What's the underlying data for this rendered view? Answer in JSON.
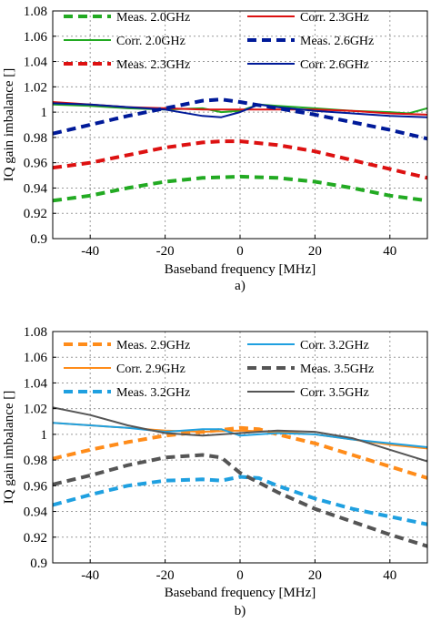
{
  "chart_data": [
    {
      "type": "line",
      "panel_label": "a)",
      "xlabel": "Baseband frequency [MHz]",
      "ylabel": "IQ gain imbalance []",
      "xlim": [
        -50,
        50
      ],
      "ylim": [
        0.9,
        1.08
      ],
      "xticks": [
        -40,
        -20,
        0,
        20,
        40
      ],
      "yticks": [
        "0.9",
        "0.92",
        "0.94",
        "0.96",
        "0.98",
        "1",
        "1.02",
        "1.04",
        "1.06",
        "1.08"
      ],
      "grid": true,
      "legend_position": "top, inside axes, two columns",
      "series": [
        {
          "name": "Meas. 2.0GHz",
          "color": "#22aa22",
          "style": "dashed",
          "x": [
            -50,
            -40,
            -30,
            -20,
            -10,
            0,
            10,
            20,
            30,
            40,
            50
          ],
          "y": [
            0.93,
            0.934,
            0.94,
            0.945,
            0.948,
            0.949,
            0.948,
            0.945,
            0.94,
            0.934,
            0.93
          ]
        },
        {
          "name": "Corr. 2.0GHz",
          "color": "#22aa22",
          "style": "solid",
          "x": [
            -50,
            -40,
            -30,
            -20,
            -10,
            -5,
            0,
            5,
            10,
            20,
            30,
            40,
            45,
            50
          ],
          "y": [
            1.006,
            1.005,
            1.003,
            1.002,
            1.003,
            1.0,
            1.001,
            1.006,
            1.005,
            1.003,
            1.001,
            1.0,
            0.999,
            1.003
          ]
        },
        {
          "name": "Meas. 2.3GHz",
          "color": "#dd1111",
          "style": "dashed",
          "x": [
            -50,
            -40,
            -30,
            -20,
            -10,
            -5,
            0,
            10,
            20,
            30,
            40,
            50
          ],
          "y": [
            0.956,
            0.96,
            0.966,
            0.972,
            0.976,
            0.977,
            0.977,
            0.974,
            0.969,
            0.962,
            0.955,
            0.948
          ]
        },
        {
          "name": "Corr. 2.3GHz",
          "color": "#dd1111",
          "style": "solid",
          "x": [
            -50,
            -40,
            -30,
            -20,
            -10,
            0,
            10,
            20,
            30,
            40,
            50
          ],
          "y": [
            1.008,
            1.006,
            1.004,
            1.003,
            1.002,
            1.002,
            1.002,
            1.002,
            1.001,
            0.999,
            0.998
          ]
        },
        {
          "name": "Meas. 2.6GHz",
          "color": "#001a99",
          "style": "dashed",
          "x": [
            -50,
            -40,
            -30,
            -20,
            -10,
            -5,
            0,
            10,
            20,
            30,
            40,
            50
          ],
          "y": [
            0.983,
            0.99,
            0.997,
            1.003,
            1.009,
            1.01,
            1.008,
            1.003,
            0.998,
            0.992,
            0.986,
            0.979
          ]
        },
        {
          "name": "Corr. 2.6GHz",
          "color": "#001a99",
          "style": "solid",
          "x": [
            -50,
            -40,
            -30,
            -20,
            -10,
            -5,
            0,
            5,
            10,
            20,
            30,
            40,
            50
          ],
          "y": [
            1.007,
            1.006,
            1.004,
            1.002,
            0.997,
            0.996,
            1.0,
            1.006,
            1.004,
            1.001,
            0.999,
            0.997,
            0.996
          ]
        }
      ]
    },
    {
      "type": "line",
      "panel_label": "b)",
      "xlabel": "Baseband frequency [MHz]",
      "ylabel": "IQ gain imbalance []",
      "xlim": [
        -50,
        50
      ],
      "ylim": [
        0.9,
        1.08
      ],
      "xticks": [
        -40,
        -20,
        0,
        20,
        40
      ],
      "yticks": [
        "0.9",
        "0.92",
        "0.94",
        "0.96",
        "0.98",
        "1",
        "1.02",
        "1.04",
        "1.06",
        "1.08"
      ],
      "grid": true,
      "legend_position": "top, inside axes, two columns",
      "series": [
        {
          "name": "Meas. 2.9GHz",
          "color": "#ff8c1a",
          "style": "dashed",
          "x": [
            -50,
            -40,
            -30,
            -20,
            -10,
            0,
            5,
            10,
            20,
            30,
            40,
            50
          ],
          "y": [
            0.981,
            0.988,
            0.994,
            0.999,
            1.002,
            1.005,
            1.004,
            1.0,
            0.993,
            0.984,
            0.975,
            0.966
          ]
        },
        {
          "name": "Corr. 2.9GHz",
          "color": "#ff8c1a",
          "style": "solid",
          "x": [
            -50,
            -40,
            -30,
            -20,
            -10,
            0,
            10,
            20,
            30,
            40,
            50
          ],
          "y": [
            1.009,
            1.007,
            1.005,
            1.003,
            1.002,
            1.003,
            1.002,
            1.0,
            0.996,
            0.992,
            0.989
          ]
        },
        {
          "name": "Meas. 3.2GHz",
          "color": "#1fa0e0",
          "style": "dashed",
          "x": [
            -50,
            -40,
            -30,
            -20,
            -10,
            -5,
            0,
            5,
            10,
            20,
            30,
            40,
            50
          ],
          "y": [
            0.945,
            0.953,
            0.96,
            0.964,
            0.965,
            0.964,
            0.967,
            0.966,
            0.96,
            0.95,
            0.942,
            0.936,
            0.93
          ]
        },
        {
          "name": "Corr. 3.2GHz",
          "color": "#1fa0e0",
          "style": "solid",
          "x": [
            -50,
            -40,
            -30,
            -20,
            -10,
            -5,
            0,
            10,
            20,
            30,
            40,
            50
          ],
          "y": [
            1.009,
            1.007,
            1.005,
            1.002,
            1.004,
            1.004,
            0.999,
            1.001,
            1.0,
            0.996,
            0.993,
            0.99
          ]
        },
        {
          "name": "Meas. 3.5GHz",
          "color": "#555555",
          "style": "dashed",
          "x": [
            -50,
            -40,
            -30,
            -20,
            -10,
            -5,
            0,
            10,
            20,
            30,
            40,
            50
          ],
          "y": [
            0.961,
            0.968,
            0.976,
            0.982,
            0.984,
            0.982,
            0.97,
            0.955,
            0.942,
            0.932,
            0.922,
            0.913
          ]
        },
        {
          "name": "Corr. 3.5GHz",
          "color": "#555555",
          "style": "solid",
          "x": [
            -50,
            -40,
            -30,
            -20,
            -10,
            0,
            10,
            20,
            30,
            40,
            50
          ],
          "y": [
            1.021,
            1.015,
            1.007,
            1.001,
            0.999,
            1.001,
            1.003,
            1.002,
            0.997,
            0.988,
            0.979
          ]
        }
      ]
    }
  ]
}
